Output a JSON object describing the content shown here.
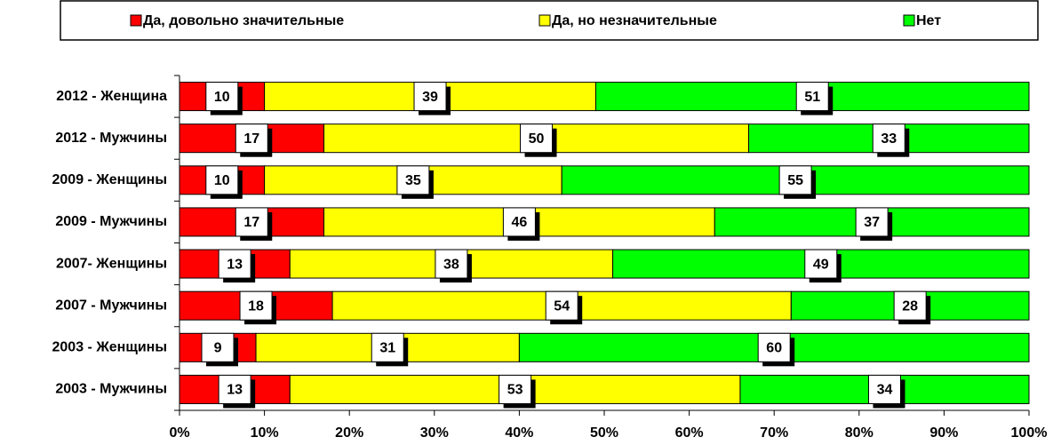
{
  "chart_data": {
    "type": "stacked_barh",
    "categories": [
      "2012 - Женщина",
      "2012 - Мужчины",
      "2009 - Женщины",
      "2009 - Мужчины",
      "2007- Женщины",
      "2007 - Мужчины",
      "2003 - Женщины",
      "2003 - Мужчины"
    ],
    "series": [
      {
        "name": "Да, довольно значительные",
        "color": "#ff0000",
        "values": [
          10,
          17,
          10,
          17,
          13,
          18,
          9,
          13
        ]
      },
      {
        "name": "Да, но незначительные",
        "color": "#ffff00",
        "values": [
          39,
          50,
          35,
          46,
          38,
          54,
          31,
          53
        ]
      },
      {
        "name": "Нет",
        "color": "#00ff00",
        "values": [
          51,
          33,
          55,
          37,
          49,
          28,
          60,
          34
        ]
      }
    ],
    "xlim": [
      0,
      100
    ],
    "xticks": [
      {
        "value": 0,
        "label": "0%"
      },
      {
        "value": 10,
        "label": "10%"
      },
      {
        "value": 20,
        "label": "20%"
      },
      {
        "value": 30,
        "label": "30%"
      },
      {
        "value": 40,
        "label": "40%"
      },
      {
        "value": 50,
        "label": "50%"
      },
      {
        "value": 60,
        "label": "60%"
      },
      {
        "value": 70,
        "label": "70%"
      },
      {
        "value": 80,
        "label": "80%"
      },
      {
        "value": 90,
        "label": "90%"
      },
      {
        "value": 100,
        "label": "100%"
      }
    ],
    "legend": "top"
  }
}
